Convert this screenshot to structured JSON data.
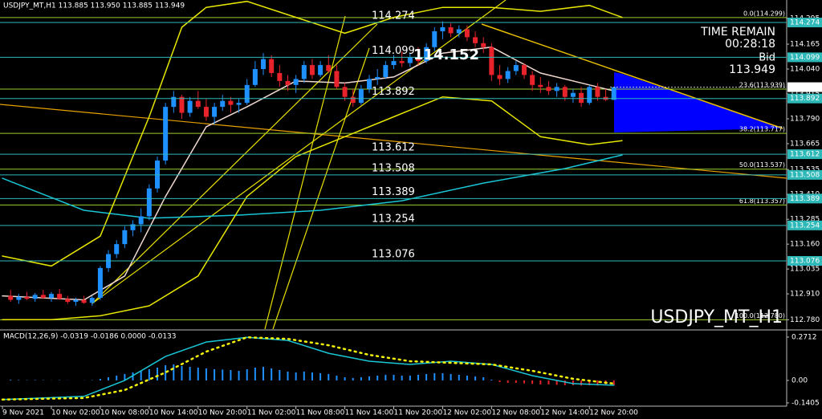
{
  "chart_data": [
    {
      "type": "candlestick",
      "header": "USDJPY_MT,H1  113.885 113.950 113.885 113.949",
      "watermark": "USDJPY_MT_H1",
      "timer_title": "TIME REMAIN",
      "timer": "00:28:18",
      "bid_label": "Bid",
      "bid": 113.949,
      "price_annotation": 114.152,
      "xlim": [
        -0.3,
        96.2
      ],
      "xticks": [
        {
          "value": 0,
          "label": "9 Nov 2021"
        },
        {
          "value": 6,
          "label": "10 Nov 02:00"
        },
        {
          "value": 12,
          "label": "10 Nov 08:00"
        },
        {
          "value": 18,
          "label": "10 Nov 14:00"
        },
        {
          "value": 24,
          "label": "10 Nov 20:00"
        },
        {
          "value": 30,
          "label": "11 Nov 02:00"
        },
        {
          "value": 36,
          "label": "11 Nov 08:00"
        },
        {
          "value": 42,
          "label": "11 Nov 14:00"
        },
        {
          "value": 48,
          "label": "11 Nov 20:00"
        },
        {
          "value": 54,
          "label": "12 Nov 02:00"
        },
        {
          "value": 60,
          "label": "12 Nov 08:00"
        },
        {
          "value": 66,
          "label": "12 Nov 14:00"
        },
        {
          "value": 72,
          "label": "12 Nov 20:00"
        }
      ],
      "ylim": [
        112.733,
        114.387
      ],
      "yticks": [
        114.295,
        114.165,
        {
          "value": 114.04,
          "label": "114.040"
        },
        113.915,
        {
          "value": 113.79,
          "label": "113.790"
        },
        113.665,
        113.535,
        {
          "value": 113.41,
          "label": "113.410"
        },
        113.285,
        {
          "value": 113.16,
          "label": "113.160"
        },
        113.035,
        {
          "value": 112.91,
          "label": "112.910"
        },
        {
          "value": 112.78,
          "label": "112.780"
        }
      ],
      "levels": [
        114.274,
        114.099,
        113.892,
        113.612,
        113.508,
        113.389,
        113.254,
        113.076
      ],
      "level_color": "#2fb8b8",
      "fib_color": "#9acd32",
      "fib_levels": [
        {
          "value": 114.299,
          "label": "0.0(114.299)"
        },
        {
          "value": 113.939,
          "label": "23.6(113.939)"
        },
        {
          "value": 113.717,
          "label": "38.2(113.717)"
        },
        {
          "value": 113.537,
          "label": "50.0(113.537)"
        },
        {
          "value": 113.357,
          "label": "61.8(113.357)"
        },
        {
          "value": 112.78,
          "label": "100.0(112.780)"
        }
      ],
      "candles": {
        "up_color": "#1e90ff",
        "down_color": "#e8232b",
        "x": [
          1,
          2,
          3,
          4,
          5,
          6,
          7,
          8,
          9,
          10,
          11,
          12,
          13,
          14,
          15,
          16,
          17,
          18,
          19,
          20,
          21,
          22,
          23,
          24,
          25,
          26,
          27,
          28,
          29,
          30,
          31,
          32,
          33,
          34,
          35,
          36,
          37,
          38,
          39,
          40,
          41,
          42,
          43,
          44,
          45,
          46,
          47,
          48,
          49,
          50,
          51,
          52,
          53,
          54,
          55,
          56,
          57,
          58,
          59,
          60,
          61,
          62,
          63,
          64,
          65,
          66,
          67,
          68,
          69,
          70,
          71,
          72,
          73,
          74,
          75
        ],
        "open": [
          112.9,
          112.88,
          112.895,
          112.885,
          112.905,
          112.89,
          112.91,
          112.885,
          112.87,
          112.88,
          112.865,
          112.89,
          113.04,
          113.11,
          113.16,
          113.23,
          113.26,
          113.3,
          113.44,
          113.58,
          113.85,
          113.9,
          113.82,
          113.88,
          113.85,
          113.8,
          113.85,
          113.88,
          113.86,
          113.87,
          113.96,
          114.04,
          114.09,
          114.02,
          113.98,
          113.96,
          113.99,
          114.06,
          114.01,
          114.06,
          114.03,
          113.95,
          113.9,
          113.87,
          113.94,
          113.99,
          114.0,
          114.06,
          114.08,
          114.07,
          114.1,
          114.08,
          114.15,
          114.23,
          114.25,
          114.22,
          114.24,
          114.2,
          114.17,
          114.15,
          114.01,
          113.99,
          114.03,
          114.06,
          114.01,
          113.96,
          113.95,
          113.93,
          113.95,
          113.9,
          113.92,
          113.87,
          113.95,
          113.9,
          113.885
        ],
        "high": [
          112.93,
          112.91,
          112.92,
          112.915,
          112.93,
          112.92,
          112.935,
          112.9,
          112.89,
          112.9,
          112.9,
          113.05,
          113.13,
          113.18,
          113.25,
          113.28,
          113.34,
          113.46,
          113.6,
          113.87,
          113.93,
          113.91,
          113.9,
          113.93,
          113.89,
          113.87,
          113.91,
          113.9,
          113.89,
          113.99,
          114.08,
          114.12,
          114.11,
          114.06,
          114.01,
          114.01,
          114.08,
          114.09,
          114.08,
          114.11,
          114.06,
          113.97,
          113.94,
          113.96,
          114.01,
          114.04,
          114.08,
          114.11,
          114.13,
          114.12,
          114.15,
          114.17,
          114.25,
          114.28,
          114.27,
          114.26,
          114.26,
          114.23,
          114.2,
          114.17,
          114.06,
          114.05,
          114.08,
          114.07,
          114.03,
          114.0,
          113.98,
          113.97,
          113.96,
          113.94,
          113.95,
          113.96,
          113.97,
          113.94,
          113.95
        ],
        "low": [
          112.87,
          112.86,
          112.88,
          112.87,
          112.885,
          112.87,
          112.88,
          112.86,
          112.85,
          112.86,
          112.85,
          112.88,
          113.02,
          113.09,
          113.14,
          113.2,
          113.22,
          113.28,
          113.42,
          113.56,
          113.82,
          113.79,
          113.8,
          113.84,
          113.78,
          113.76,
          113.83,
          113.82,
          113.82,
          113.86,
          113.95,
          114.01,
          114.0,
          113.95,
          113.93,
          113.92,
          113.97,
          113.99,
          114.0,
          114.02,
          113.94,
          113.88,
          113.85,
          113.86,
          113.92,
          113.96,
          113.99,
          114.04,
          114.05,
          114.05,
          114.06,
          114.07,
          114.13,
          114.19,
          114.2,
          114.2,
          114.18,
          114.15,
          114.12,
          113.98,
          113.96,
          113.97,
          114.01,
          113.99,
          113.93,
          113.92,
          113.91,
          113.9,
          113.88,
          113.87,
          113.85,
          113.86,
          113.88,
          113.88,
          113.885
        ],
        "close": [
          112.88,
          112.895,
          112.885,
          112.905,
          112.89,
          112.91,
          112.885,
          112.87,
          112.88,
          112.865,
          112.89,
          113.04,
          113.11,
          113.16,
          113.23,
          113.26,
          113.3,
          113.44,
          113.58,
          113.85,
          113.9,
          113.82,
          113.88,
          113.85,
          113.8,
          113.85,
          113.88,
          113.86,
          113.87,
          113.96,
          114.04,
          114.09,
          114.02,
          113.98,
          113.96,
          113.99,
          114.06,
          114.01,
          114.06,
          114.03,
          113.95,
          113.9,
          113.87,
          113.94,
          113.99,
          114.0,
          114.06,
          114.08,
          114.07,
          114.1,
          114.08,
          114.15,
          114.23,
          114.25,
          114.22,
          114.24,
          114.2,
          114.17,
          114.15,
          114.01,
          113.99,
          114.03,
          114.06,
          114.01,
          113.96,
          113.95,
          113.93,
          113.95,
          113.9,
          113.92,
          113.87,
          113.95,
          113.9,
          113.885,
          113.949
        ]
      },
      "lines": [
        {
          "color": "#19c6d6",
          "x": [
            0,
            10,
            18,
            29,
            39,
            49,
            59,
            69,
            76
          ],
          "values": [
            113.491,
            113.33,
            113.29,
            113.306,
            113.33,
            113.378,
            113.467,
            113.54,
            113.608
          ]
        },
        {
          "color": "#e6e600",
          "x": [
            0,
            6,
            12,
            18,
            22,
            25,
            30,
            36,
            42,
            48,
            54,
            60,
            66,
            72,
            76
          ],
          "values": [
            113.1,
            113.05,
            113.2,
            113.8,
            114.25,
            114.35,
            114.38,
            114.3,
            114.22,
            114.3,
            114.35,
            114.35,
            114.33,
            114.36,
            114.3
          ]
        },
        {
          "color": "#e6e600",
          "x": [
            0,
            6,
            12,
            18,
            24,
            30,
            36,
            42,
            48,
            54,
            60,
            66,
            72,
            76
          ],
          "values": [
            112.78,
            112.78,
            112.8,
            112.85,
            113.0,
            113.4,
            113.6,
            113.7,
            113.8,
            113.9,
            113.88,
            113.7,
            113.66,
            113.68
          ]
        },
        {
          "color": "#f0d8d0",
          "x": [
            0,
            10,
            15,
            20,
            25,
            30,
            36,
            42,
            48,
            54,
            60,
            66,
            72,
            75
          ],
          "values": [
            112.9,
            112.88,
            113.0,
            113.4,
            113.75,
            113.85,
            113.98,
            113.97,
            114.0,
            114.12,
            114.15,
            114.02,
            113.96,
            113.93
          ]
        }
      ]
    },
    {
      "type": "macd",
      "label": "MACD(12,26,9) -0.0319 -0.0186 0.0000 -0.0133",
      "xlim": [
        -0.3,
        96.2
      ],
      "ylim": [
        -0.156,
        0.311
      ],
      "yticks": [
        0.2712,
        {
          "value": 0,
          "label": "0.00"
        },
        -0.1405
      ],
      "histogram": {
        "up_color": "#1e90ff",
        "down_color": "#e8232b",
        "x": [
          1,
          2,
          3,
          4,
          5,
          6,
          7,
          8,
          9,
          10,
          11,
          12,
          13,
          14,
          15,
          16,
          17,
          18,
          19,
          20,
          21,
          22,
          23,
          24,
          25,
          26,
          27,
          28,
          29,
          30,
          31,
          32,
          33,
          34,
          35,
          36,
          37,
          38,
          39,
          40,
          41,
          42,
          43,
          44,
          45,
          46,
          47,
          48,
          49,
          50,
          51,
          52,
          53,
          54,
          55,
          56,
          57,
          58,
          59,
          60,
          61,
          62,
          63,
          64,
          65,
          66,
          67,
          68,
          69,
          70,
          71,
          72,
          73,
          74,
          75
        ],
        "values": [
          0.004,
          0.003,
          0.002,
          0.003,
          0.002,
          0.001,
          0.002,
          0.001,
          0.0,
          0.001,
          0.002,
          0.01,
          0.02,
          0.03,
          0.04,
          0.05,
          0.06,
          0.07,
          0.08,
          0.095,
          0.1,
          0.09,
          0.085,
          0.08,
          0.075,
          0.07,
          0.068,
          0.065,
          0.06,
          0.07,
          0.08,
          0.085,
          0.075,
          0.065,
          0.055,
          0.05,
          0.055,
          0.05,
          0.045,
          0.04,
          0.03,
          0.02,
          0.015,
          0.02,
          0.025,
          0.03,
          0.035,
          0.035,
          0.03,
          0.03,
          0.035,
          0.04,
          0.045,
          0.045,
          0.04,
          0.035,
          0.03,
          0.025,
          0.02,
          0.005,
          -0.01,
          -0.015,
          -0.015,
          -0.018,
          -0.022,
          -0.025,
          -0.025,
          -0.028,
          -0.03,
          -0.03,
          -0.032,
          -0.03,
          -0.032,
          -0.03,
          -0.032
        ]
      },
      "lines": [
        {
          "color": "#19c6d6",
          "dotted": false,
          "x": [
            0,
            10,
            15,
            20,
            25,
            30,
            35,
            40,
            45,
            50,
            55,
            60,
            65,
            70,
            75
          ],
          "values": [
            -0.12,
            -0.1,
            0.0,
            0.15,
            0.24,
            0.27,
            0.25,
            0.17,
            0.12,
            0.1,
            0.12,
            0.1,
            0.03,
            -0.02,
            -0.03
          ]
        },
        {
          "color": "#f2f20a",
          "dotted": true,
          "x": [
            0,
            10,
            15,
            20,
            25,
            30,
            35,
            40,
            45,
            50,
            55,
            60,
            65,
            70,
            75
          ],
          "values": [
            -0.12,
            -0.11,
            -0.06,
            0.05,
            0.18,
            0.27,
            0.26,
            0.22,
            0.16,
            0.12,
            0.11,
            0.1,
            0.06,
            0.01,
            -0.02
          ]
        }
      ]
    }
  ]
}
